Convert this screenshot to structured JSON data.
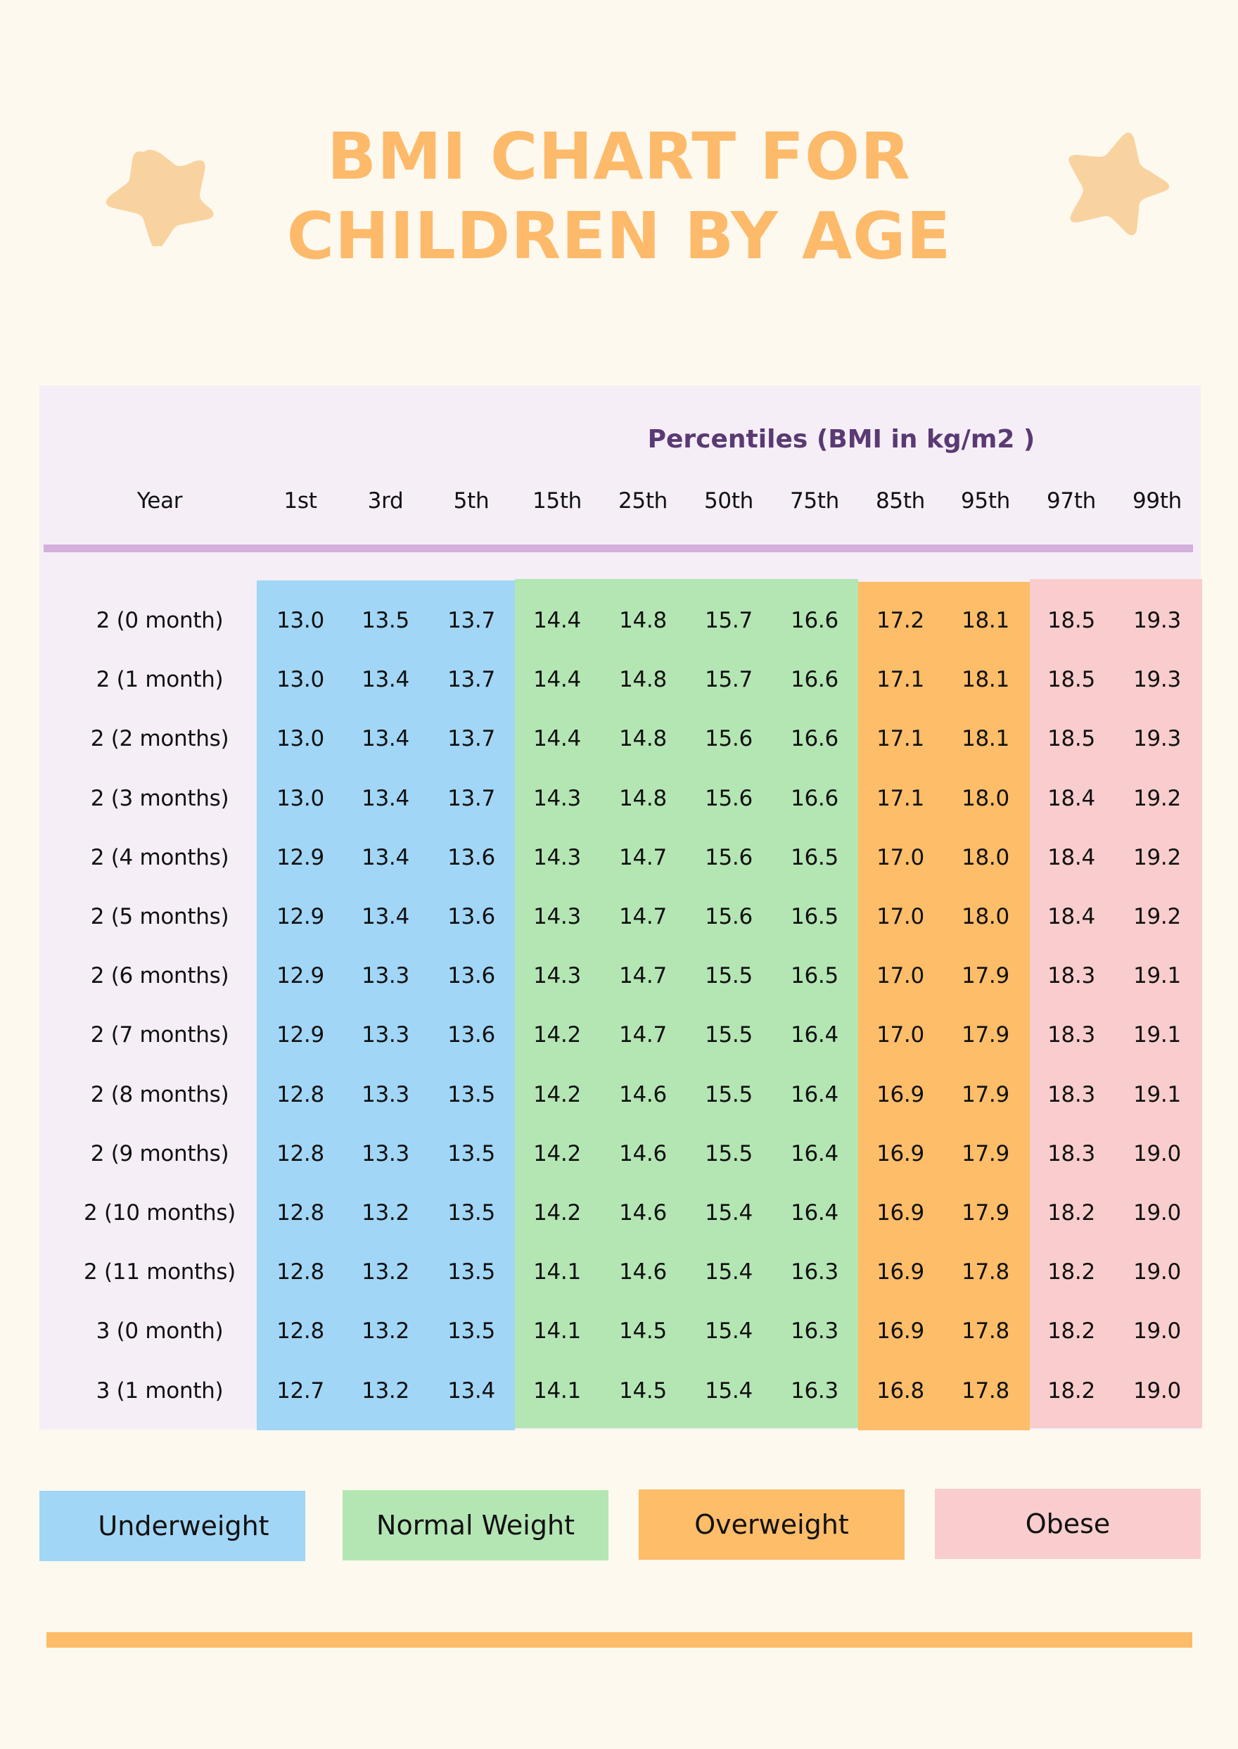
{
  "title": {
    "line1": "BMI CHART FOR",
    "line2": "CHILDREN BY AGE",
    "color": "#FDBA6A"
  },
  "decorations": {
    "left_star": "star-icon",
    "right_star": "star-icon",
    "star_color": "#F9D39F"
  },
  "table": {
    "subtitle": "Percentiles (BMI in kg/m2 )",
    "year_header": "Year",
    "percentile_headers": [
      "1st",
      "3rd",
      "5th",
      "15th",
      "25th",
      "50th",
      "75th",
      "85th",
      "95th",
      "97th",
      "99th"
    ],
    "rows": [
      {
        "year": "2 (0 month)",
        "values": [
          "13.0",
          "13.5",
          "13.7",
          "14.4",
          "14.8",
          "15.7",
          "16.6",
          "17.2",
          "18.1",
          "18.5",
          "19.3"
        ]
      },
      {
        "year": "2 (1 month)",
        "values": [
          "13.0",
          "13.4",
          "13.7",
          "14.4",
          "14.8",
          "15.7",
          "16.6",
          "17.1",
          "18.1",
          "18.5",
          "19.3"
        ]
      },
      {
        "year": "2 (2 months)",
        "values": [
          "13.0",
          "13.4",
          "13.7",
          "14.4",
          "14.8",
          "15.6",
          "16.6",
          "17.1",
          "18.1",
          "18.5",
          "19.3"
        ]
      },
      {
        "year": "2 (3 months)",
        "values": [
          "13.0",
          "13.4",
          "13.7",
          "14.3",
          "14.8",
          "15.6",
          "16.6",
          "17.1",
          "18.0",
          "18.4",
          "19.2"
        ]
      },
      {
        "year": "2 (4 months)",
        "values": [
          "12.9",
          "13.4",
          "13.6",
          "14.3",
          "14.7",
          "15.6",
          "16.5",
          "17.0",
          "18.0",
          "18.4",
          "19.2"
        ]
      },
      {
        "year": "2 (5 months)",
        "values": [
          "12.9",
          "13.4",
          "13.6",
          "14.3",
          "14.7",
          "15.6",
          "16.5",
          "17.0",
          "18.0",
          "18.4",
          "19.2"
        ]
      },
      {
        "year": "2 (6 months)",
        "values": [
          "12.9",
          "13.3",
          "13.6",
          "14.3",
          "14.7",
          "15.5",
          "16.5",
          "17.0",
          "17.9",
          "18.3",
          "19.1"
        ]
      },
      {
        "year": "2 (7 months)",
        "values": [
          "12.9",
          "13.3",
          "13.6",
          "14.2",
          "14.7",
          "15.5",
          "16.4",
          "17.0",
          "17.9",
          "18.3",
          "19.1"
        ]
      },
      {
        "year": "2 (8 months)",
        "values": [
          "12.8",
          "13.3",
          "13.5",
          "14.2",
          "14.6",
          "15.5",
          "16.4",
          "16.9",
          "17.9",
          "18.3",
          "19.1"
        ]
      },
      {
        "year": "2 (9 months)",
        "values": [
          "12.8",
          "13.3",
          "13.5",
          "14.2",
          "14.6",
          "15.5",
          "16.4",
          "16.9",
          "17.9",
          "18.3",
          "19.0"
        ]
      },
      {
        "year": "2 (10 months)",
        "values": [
          "12.8",
          "13.2",
          "13.5",
          "14.2",
          "14.6",
          "15.4",
          "16.4",
          "16.9",
          "17.9",
          "18.2",
          "19.0"
        ]
      },
      {
        "year": "2 (11 months)",
        "values": [
          "12.8",
          "13.2",
          "13.5",
          "14.1",
          "14.6",
          "15.4",
          "16.3",
          "16.9",
          "17.8",
          "18.2",
          "19.0"
        ]
      },
      {
        "year": "3 (0 month)",
        "values": [
          "12.8",
          "13.2",
          "13.5",
          "14.1",
          "14.5",
          "15.4",
          "16.3",
          "16.9",
          "17.8",
          "18.2",
          "19.0"
        ]
      },
      {
        "year": "3 (1 month)",
        "values": [
          "12.7",
          "13.2",
          "13.4",
          "14.1",
          "14.5",
          "15.4",
          "16.3",
          "16.8",
          "17.8",
          "18.2",
          "19.0"
        ]
      }
    ],
    "category_bands": [
      {
        "name": "Underweight",
        "columns": [
          "1st",
          "3rd",
          "5th"
        ],
        "color": "#A1D6F6"
      },
      {
        "name": "Normal Weight",
        "columns": [
          "15th",
          "25th",
          "50th",
          "75th"
        ],
        "color": "#B4E6B4"
      },
      {
        "name": "Overweight",
        "columns": [
          "85th",
          "95th"
        ],
        "color": "#FDBD69"
      },
      {
        "name": "Obese",
        "columns": [
          "97th",
          "99th"
        ],
        "color": "#F9CDCD"
      }
    ],
    "panel_color": "#F5EEF7",
    "divider_color": "#D4AEDC",
    "subtitle_color": "#5A3A73"
  },
  "legend": [
    {
      "label": "Underweight",
      "color": "#A1D6F6"
    },
    {
      "label": "Normal Weight",
      "color": "#B4E6B4"
    },
    {
      "label": "Overweight",
      "color": "#FDBD69"
    },
    {
      "label": "Obese",
      "color": "#F9CDCD"
    }
  ],
  "footer": {
    "bar_color": "#FDBC68"
  },
  "page_background": "#FDF9EF"
}
